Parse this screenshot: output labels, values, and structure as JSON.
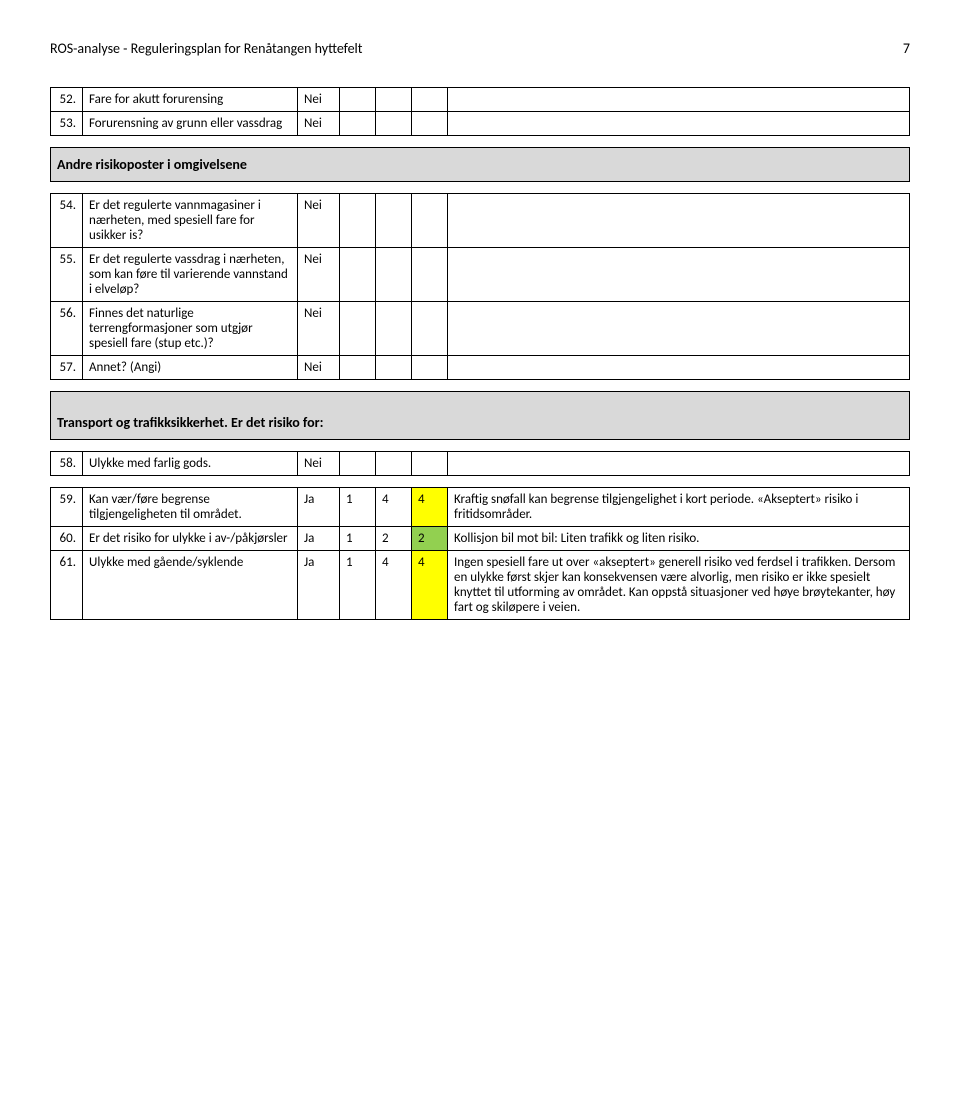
{
  "header": {
    "title": "ROS-analyse - Reguleringsplan for Renåtangen hyttefelt",
    "page": "7"
  },
  "rows": {
    "r52": {
      "num": "52.",
      "desc": "Fare for akutt forurensing",
      "ans": "Nei"
    },
    "r53": {
      "num": "53.",
      "desc": "Forurensning av grunn eller vassdrag",
      "ans": "Nei"
    },
    "sec1": "Andre risikoposter i omgivelsene",
    "r54": {
      "num": "54.",
      "desc": "Er det regulerte vannmagasiner i nærheten, med spesiell fare for usikker is?",
      "ans": "Nei"
    },
    "r55": {
      "num": "55.",
      "desc": "Er det regulerte vassdrag i nærheten, som kan føre til varierende vannstand i elveløp?",
      "ans": "Nei"
    },
    "r56": {
      "num": "56.",
      "desc": "Finnes det naturlige terrengformasjoner som utgjør spesiell fare (stup etc.)?",
      "ans": "Nei"
    },
    "r57": {
      "num": "57.",
      "desc": "Annet? (Angi)",
      "ans": "Nei"
    },
    "sec2": "Transport og trafikksikkerhet. Er det risiko for:",
    "r58": {
      "num": "58.",
      "desc": "Ulykke med farlig gods.",
      "ans": "Nei"
    },
    "r59": {
      "num": "59.",
      "desc": "Kan vær/føre begrense tilgjengeligheten til området.",
      "ans": "Ja",
      "v1": "1",
      "v2": "4",
      "v3": "4",
      "comment": "Kraftig snøfall kan begrense tilgjengelighet i kort periode. «Akseptert» risiko i fritidsområder."
    },
    "r60": {
      "num": "60.",
      "desc": "Er det risiko for ulykke i av-/påkjørsler",
      "ans": "Ja",
      "v1": "1",
      "v2": "2",
      "v3": "2",
      "comment": "Kollisjon bil mot bil: Liten trafikk og liten risiko."
    },
    "r61": {
      "num": "61.",
      "desc": "Ulykke med gående/syklende",
      "ans": "Ja",
      "v1": "1",
      "v2": "4",
      "v3": "4",
      "comment": "Ingen spesiell fare ut over «akseptert» generell risiko ved ferdsel i trafikken. Dersom en ulykke først skjer kan konsekvensen være alvorlig, men risiko er ikke spesielt knyttet til utforming av området. Kan oppstå situasjoner ved høye brøytekanter, høy fart og skiløpere i veien."
    }
  },
  "colors": {
    "section_bg": "#d9d9d9",
    "yellow": "#ffff00",
    "green": "#92d050"
  }
}
